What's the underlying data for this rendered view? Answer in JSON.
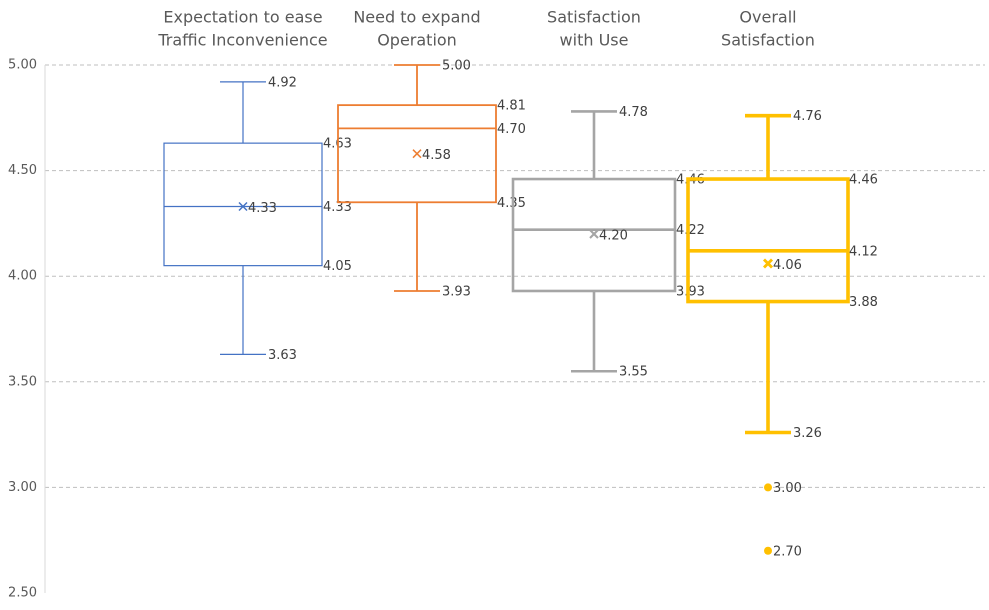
{
  "chart_data": {
    "type": "boxplot",
    "ylim": [
      2.5,
      5.0
    ],
    "y_ticks": [
      "5.00",
      "4.50",
      "4.00",
      "3.50",
      "3.00",
      "2.50"
    ],
    "y_tick_values": [
      5.0,
      4.5,
      4.0,
      3.5,
      3.0,
      2.5
    ],
    "grid": true,
    "series": [
      {
        "category_lines": [
          "Expectation to ease",
          "Traffic Inconvenience"
        ],
        "color": "#4472c4",
        "min": 3.63,
        "q1": 4.05,
        "median": 4.33,
        "q3": 4.63,
        "max": 4.92,
        "mean": 4.33,
        "outliers": [],
        "labels": {
          "min": "3.63",
          "q1": "4.05",
          "median": "4.33",
          "q3": "4.63",
          "max": "4.92",
          "mean": "4.33"
        }
      },
      {
        "category_lines": [
          "Need to expand",
          "Operation"
        ],
        "color": "#ed7d31",
        "min": 3.93,
        "q1": 4.35,
        "median": 4.7,
        "q3": 4.81,
        "max": 5.0,
        "mean": 4.58,
        "outliers": [],
        "labels": {
          "min": "3.93",
          "q1": "4.35",
          "median": "4.70",
          "q3": "4.81",
          "max": "5.00",
          "mean": "4.58"
        }
      },
      {
        "category_lines": [
          "Satisfaction",
          "with Use"
        ],
        "color": "#a5a5a5",
        "min": 3.55,
        "q1": 3.93,
        "median": 4.22,
        "q3": 4.46,
        "max": 4.78,
        "mean": 4.2,
        "outliers": [],
        "labels": {
          "min": "3.55",
          "q1": "3.93",
          "median": "4.22",
          "q3": "4.46",
          "max": "4.78",
          "mean": "4.20"
        }
      },
      {
        "category_lines": [
          "Overall",
          "Satisfaction"
        ],
        "color": "#ffc000",
        "min": 3.26,
        "q1": 3.88,
        "median": 4.12,
        "q3": 4.46,
        "max": 4.76,
        "mean": 4.06,
        "outliers": [
          3.0,
          2.7
        ],
        "labels": {
          "min": "3.26",
          "q1": "3.88",
          "median": "4.12",
          "q3": "4.46",
          "max": "4.76",
          "mean": "4.06",
          "outliers": [
            "3.00",
            "2.70"
          ]
        }
      }
    ]
  }
}
